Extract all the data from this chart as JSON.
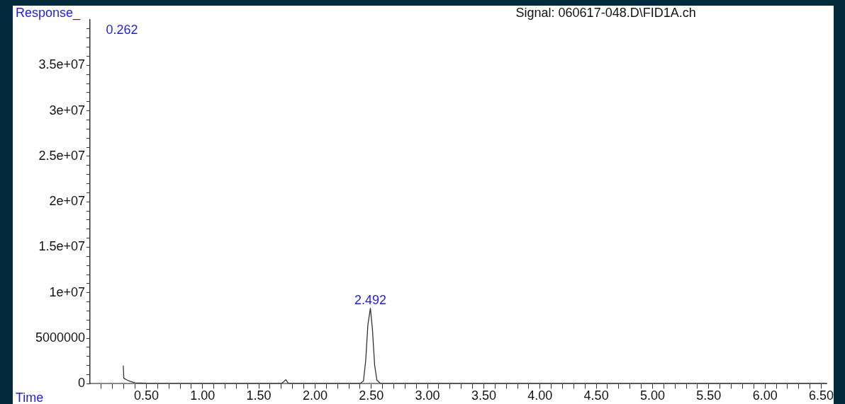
{
  "chart_data": {
    "type": "line",
    "title": "Signal: 060617-048.D\\FID1A.ch",
    "xlabel": "Time",
    "ylabel": "Response_",
    "series": [
      {
        "color": "#333333",
        "x": [
          0.295,
          0.3,
          0.33,
          0.36,
          0.4,
          0.5,
          1.0,
          1.7,
          1.72,
          1.74,
          1.76,
          1.78,
          2.4,
          2.43,
          2.45,
          2.47,
          2.492,
          2.51,
          2.53,
          2.55,
          2.58,
          3.0,
          6.55
        ],
        "values": [
          2000000,
          600000,
          400000,
          250000,
          100000,
          50000,
          30000,
          30000,
          200000,
          450000,
          100000,
          30000,
          30000,
          300000,
          2500000,
          6500000,
          8300000,
          6000000,
          2000000,
          400000,
          50000,
          30000,
          30000
        ]
      }
    ],
    "annotations": [
      "0.262",
      {
        "text": "2.492",
        "x": 2.492,
        "y": 8300000
      }
    ],
    "xlim": [
      0,
      6.55
    ],
    "xticks": [
      {
        "value": 0.1,
        "label": null
      },
      {
        "value": 0.2,
        "label": null
      },
      {
        "value": 0.3,
        "label": null
      },
      {
        "value": 0.4,
        "label": null
      },
      {
        "value": 0.5,
        "label": "0.50"
      },
      {
        "value": 0.6,
        "label": null
      },
      {
        "value": 0.7,
        "label": null
      },
      {
        "value": 0.8,
        "label": null
      },
      {
        "value": 0.9,
        "label": null
      },
      {
        "value": 1,
        "label": "1.00"
      },
      {
        "value": 1.1,
        "label": null
      },
      {
        "value": 1.2,
        "label": null
      },
      {
        "value": 1.3,
        "label": null
      },
      {
        "value": 1.4,
        "label": null
      },
      {
        "value": 1.5,
        "label": "1.50"
      },
      {
        "value": 1.6,
        "label": null
      },
      {
        "value": 1.7,
        "label": null
      },
      {
        "value": 1.8,
        "label": null
      },
      {
        "value": 1.9,
        "label": null
      },
      {
        "value": 2,
        "label": "2.00"
      },
      {
        "value": 2.1,
        "label": null
      },
      {
        "value": 2.2,
        "label": null
      },
      {
        "value": 2.3,
        "label": null
      },
      {
        "value": 2.4,
        "label": null
      },
      {
        "value": 2.5,
        "label": "2.50"
      },
      {
        "value": 2.6,
        "label": null
      },
      {
        "value": 2.7,
        "label": null
      },
      {
        "value": 2.8,
        "label": null
      },
      {
        "value": 2.9,
        "label": null
      },
      {
        "value": 3,
        "label": "3.00"
      },
      {
        "value": 3.1,
        "label": null
      },
      {
        "value": 3.2,
        "label": null
      },
      {
        "value": 3.3,
        "label": null
      },
      {
        "value": 3.4,
        "label": null
      },
      {
        "value": 3.5,
        "label": "3.50"
      },
      {
        "value": 3.6,
        "label": null
      },
      {
        "value": 3.7,
        "label": null
      },
      {
        "value": 3.8,
        "label": null
      },
      {
        "value": 3.9,
        "label": null
      },
      {
        "value": 4,
        "label": "4.00"
      },
      {
        "value": 4.1,
        "label": null
      },
      {
        "value": 4.2,
        "label": null
      },
      {
        "value": 4.3,
        "label": null
      },
      {
        "value": 4.4,
        "label": null
      },
      {
        "value": 4.5,
        "label": "4.50"
      },
      {
        "value": 4.6,
        "label": null
      },
      {
        "value": 4.7,
        "label": null
      },
      {
        "value": 4.8,
        "label": null
      },
      {
        "value": 4.9,
        "label": null
      },
      {
        "value": 5,
        "label": "5.00"
      },
      {
        "value": 5.1,
        "label": null
      },
      {
        "value": 5.2,
        "label": null
      },
      {
        "value": 5.3,
        "label": null
      },
      {
        "value": 5.4,
        "label": null
      },
      {
        "value": 5.5,
        "label": "5.50"
      },
      {
        "value": 5.6,
        "label": null
      },
      {
        "value": 5.7,
        "label": null
      },
      {
        "value": 5.8,
        "label": null
      },
      {
        "value": 5.9,
        "label": null
      },
      {
        "value": 6,
        "label": "6.00"
      },
      {
        "value": 6.1,
        "label": null
      },
      {
        "value": 6.2,
        "label": null
      },
      {
        "value": 6.3,
        "label": null
      },
      {
        "value": 6.4,
        "label": null
      },
      {
        "value": 6.5,
        "label": "6.50"
      }
    ],
    "ylim": [
      0,
      40000000
    ],
    "yticks": [
      0,
      {
        "value": 1000000,
        "label": null
      },
      {
        "value": 2000000,
        "label": null
      },
      {
        "value": 3000000,
        "label": null
      },
      {
        "value": 4000000,
        "label": null
      },
      5000000,
      {
        "value": 6000000,
        "label": null
      },
      {
        "value": 7000000,
        "label": null
      },
      {
        "value": 8000000,
        "label": null
      },
      {
        "value": 9000000,
        "label": null
      },
      {
        "value": 10000000,
        "label": "1e+07"
      },
      {
        "value": 11000000,
        "label": null
      },
      {
        "value": 12000000,
        "label": null
      },
      {
        "value": 13000000,
        "label": null
      },
      {
        "value": 14000000,
        "label": null
      },
      {
        "value": 15000000,
        "label": "1.5e+07"
      },
      {
        "value": 16000000,
        "label": null
      },
      {
        "value": 17000000,
        "label": null
      },
      {
        "value": 18000000,
        "label": null
      },
      {
        "value": 19000000,
        "label": null
      },
      {
        "value": 20000000,
        "label": "2e+07"
      },
      {
        "value": 21000000,
        "label": null
      },
      {
        "value": 22000000,
        "label": null
      },
      {
        "value": 23000000,
        "label": null
      },
      {
        "value": 24000000,
        "label": null
      },
      {
        "value": 25000000,
        "label": "2.5e+07"
      },
      {
        "value": 26000000,
        "label": null
      },
      {
        "value": 27000000,
        "label": null
      },
      {
        "value": 28000000,
        "label": null
      },
      {
        "value": 29000000,
        "label": null
      },
      {
        "value": 30000000,
        "label": "3e+07"
      },
      {
        "value": 31000000,
        "label": null
      },
      {
        "value": 32000000,
        "label": null
      },
      {
        "value": 33000000,
        "label": null
      },
      {
        "value": 34000000,
        "label": null
      },
      {
        "value": 35000000,
        "label": "3.5e+07"
      },
      {
        "value": 36000000,
        "label": null
      },
      {
        "value": 37000000,
        "label": null
      },
      {
        "value": 38000000,
        "label": null
      },
      {
        "value": 39000000,
        "label": null
      }
    ],
    "grid": false,
    "legend": false,
    "marker": "none",
    "line_style": "solid"
  }
}
